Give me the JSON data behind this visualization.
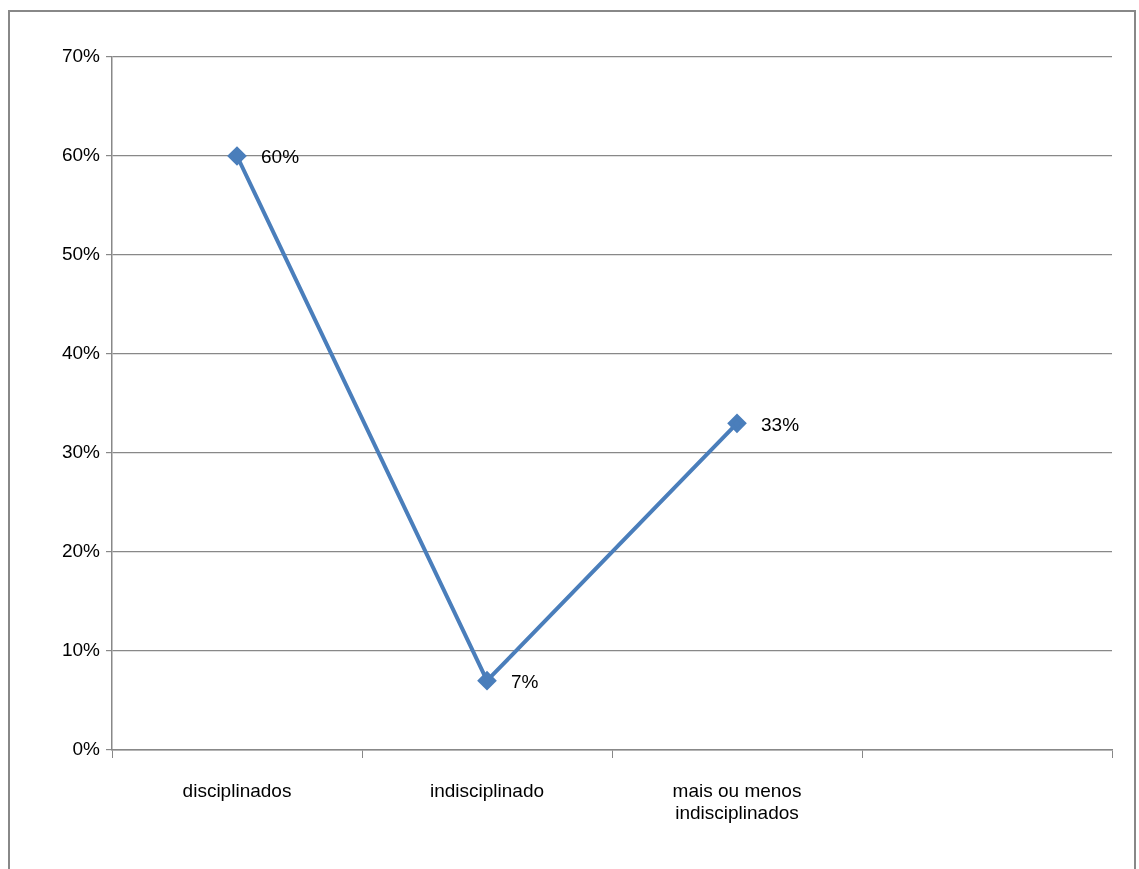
{
  "chart_data": {
    "type": "line",
    "categories": [
      "disciplinados",
      "indisciplinado",
      "mais ou menos indisciplinados",
      null
    ],
    "series": [
      {
        "color": "#4a7ebb",
        "values": [
          60,
          7,
          33,
          null
        ],
        "value_labels": [
          "60%",
          "7%",
          "33%",
          null
        ]
      }
    ],
    "ylim": [
      0,
      70
    ],
    "yticks": [
      {
        "value": 0,
        "label": "0%"
      },
      {
        "value": 10,
        "label": "10%"
      },
      {
        "value": 20,
        "label": "20%"
      },
      {
        "value": 30,
        "label": "30%"
      },
      {
        "value": 40,
        "label": "40%"
      },
      {
        "value": 50,
        "label": "50%"
      },
      {
        "value": 60,
        "label": "60%"
      },
      {
        "value": 70,
        "label": "70%"
      }
    ],
    "grid": "y",
    "legend": false,
    "marker": "diamond",
    "line_style": "solid"
  }
}
